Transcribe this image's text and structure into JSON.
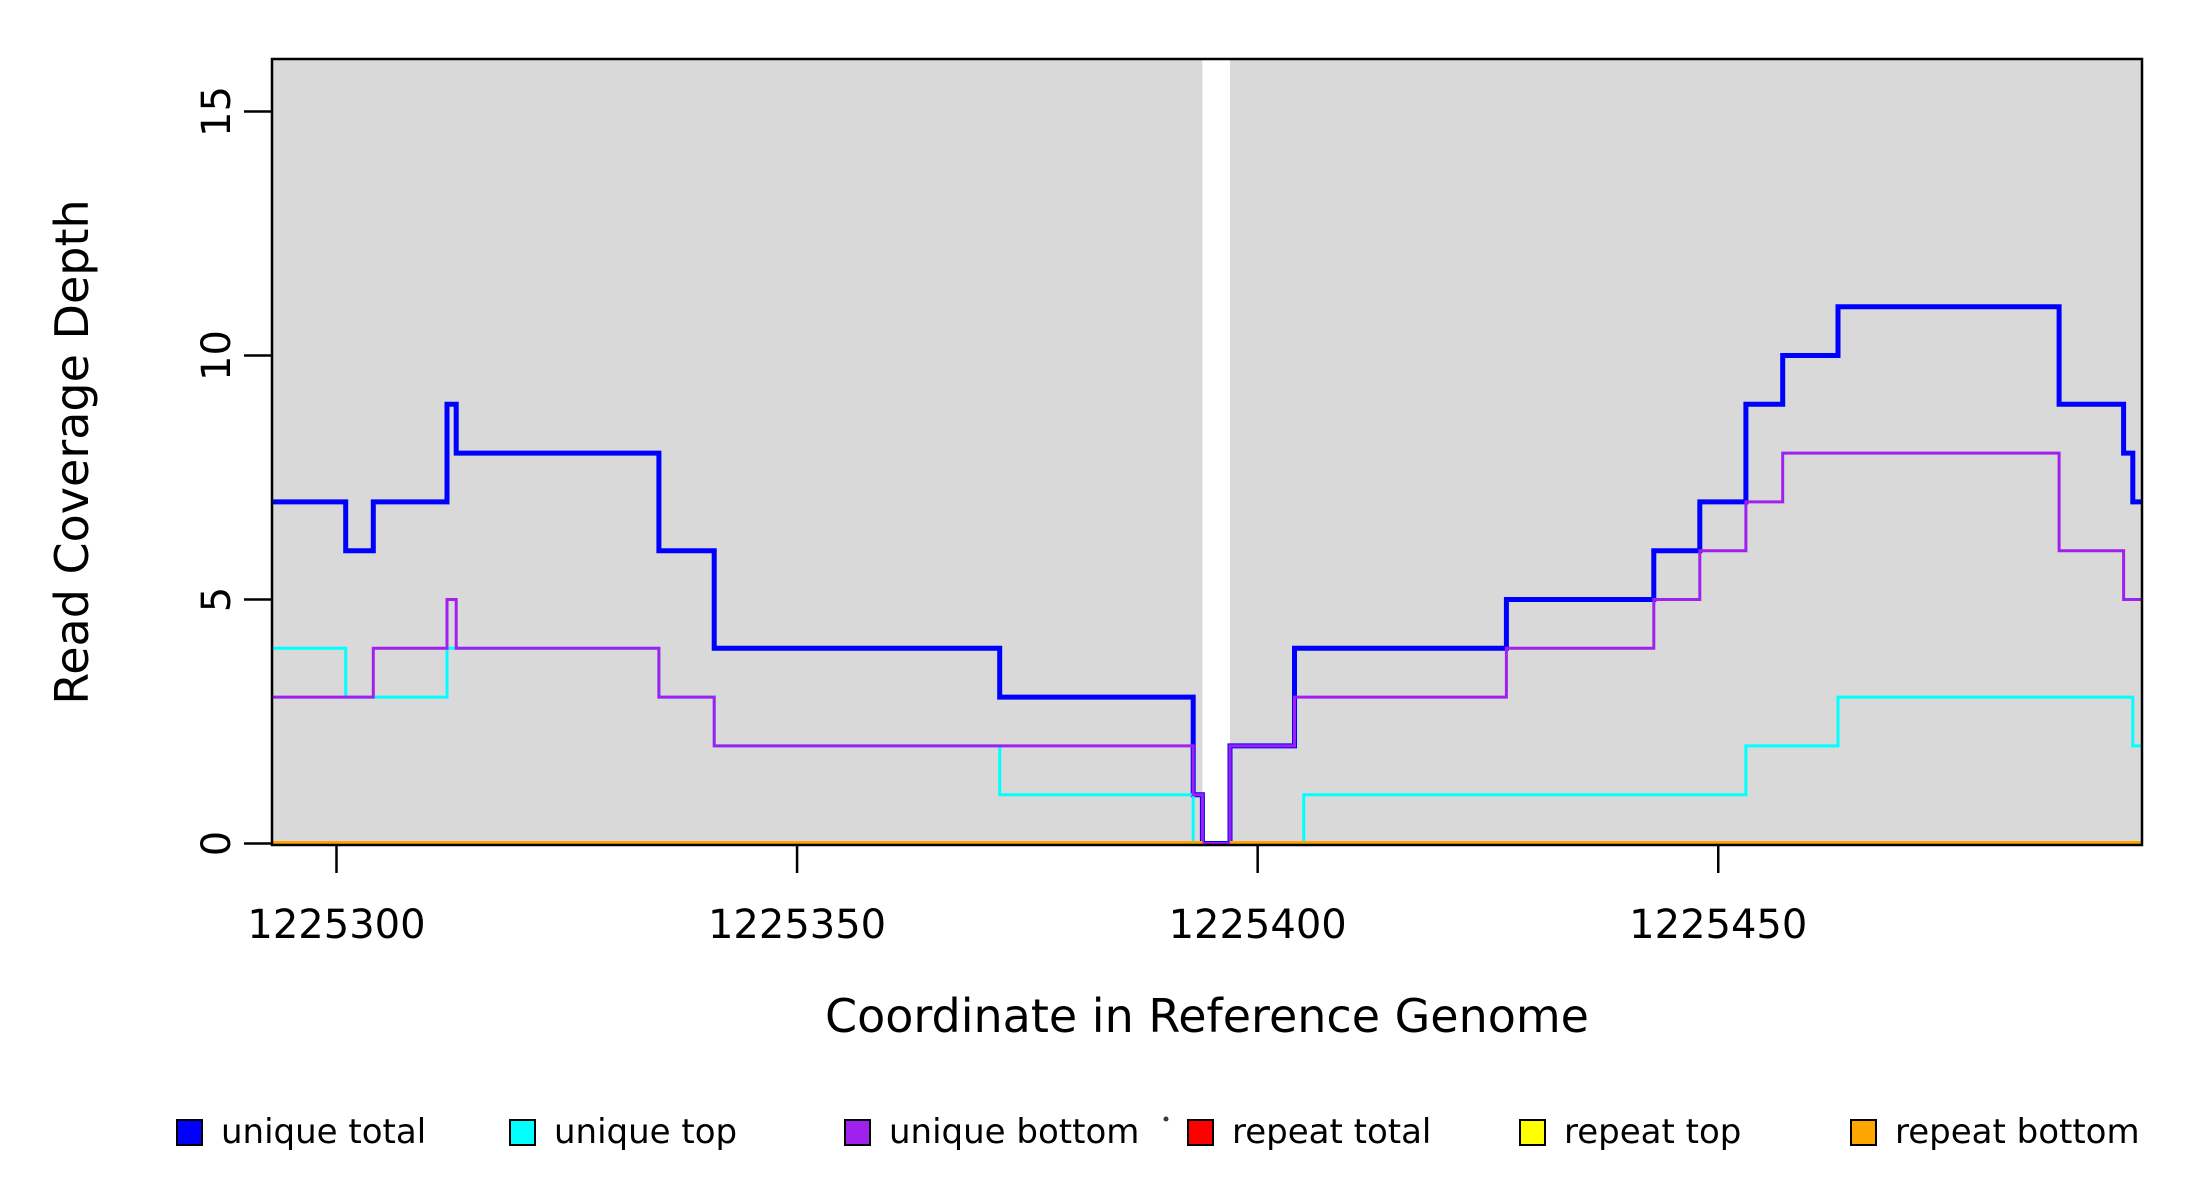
{
  "figure": {
    "background": "#ffffff",
    "plot_background": "#d9d9d9",
    "border_color": "#000000",
    "no_data_band_color": "#ffffff",
    "stray_dot_color": "#3a3a3a"
  },
  "chart_data": {
    "type": "line",
    "subtype": "step",
    "title": "",
    "xlabel": "Coordinate in Reference Genome",
    "ylabel": "Read Coverage Depth",
    "xlim": [
      1225293,
      1225496
    ],
    "ylim": [
      0,
      16
    ],
    "xticks": [
      1225300,
      1225350,
      1225400,
      1225450
    ],
    "yticks": [
      0,
      5,
      10,
      15
    ],
    "grid": false,
    "legend_position": "bottom",
    "no_data_gap": [
      1225394,
      1225397
    ],
    "series": [
      {
        "label": "unique total",
        "color": "#0000ff",
        "width": 5,
        "segments": [
          [
            [
              1225293,
              7
            ],
            [
              1225301,
              6
            ],
            [
              1225304,
              7
            ],
            [
              1225312,
              9
            ],
            [
              1225313,
              8
            ],
            [
              1225335,
              6
            ],
            [
              1225341,
              4
            ],
            [
              1225372,
              3
            ],
            [
              1225393,
              1
            ],
            [
              1225394,
              0
            ],
            [
              1225397,
              2
            ],
            [
              1225404,
              4
            ],
            [
              1225427,
              5
            ],
            [
              1225443,
              6
            ],
            [
              1225448,
              7
            ],
            [
              1225453,
              9
            ],
            [
              1225457,
              10
            ],
            [
              1225463,
              11
            ],
            [
              1225487,
              9
            ],
            [
              1225494,
              8
            ],
            [
              1225495,
              7
            ],
            [
              1225496,
              7
            ]
          ]
        ]
      },
      {
        "label": "unique top",
        "color": "#00ffff",
        "width": 3,
        "segments": [
          [
            [
              1225293,
              4
            ],
            [
              1225301,
              3
            ],
            [
              1225312,
              4
            ],
            [
              1225335,
              3
            ],
            [
              1225341,
              2
            ],
            [
              1225372,
              1
            ],
            [
              1225393,
              0
            ],
            [
              1225405,
              1
            ],
            [
              1225453,
              2
            ],
            [
              1225463,
              3
            ],
            [
              1225495,
              2
            ],
            [
              1225496,
              2
            ]
          ]
        ]
      },
      {
        "label": "unique bottom",
        "color": "#a020f0",
        "width": 3,
        "segments": [
          [
            [
              1225293,
              3
            ],
            [
              1225304,
              4
            ],
            [
              1225312,
              5
            ],
            [
              1225313,
              4
            ],
            [
              1225335,
              3
            ],
            [
              1225341,
              2
            ],
            [
              1225393,
              1
            ],
            [
              1225394,
              0
            ],
            [
              1225397,
              2
            ],
            [
              1225404,
              3
            ],
            [
              1225427,
              4
            ],
            [
              1225443,
              5
            ],
            [
              1225448,
              6
            ],
            [
              1225453,
              7
            ],
            [
              1225457,
              8
            ],
            [
              1225487,
              6
            ],
            [
              1225494,
              5
            ],
            [
              1225496,
              5
            ]
          ]
        ]
      },
      {
        "label": "repeat total",
        "color": "#ff0000",
        "width": 4,
        "segments": [
          [
            [
              1225293,
              0
            ],
            [
              1225394,
              0
            ]
          ],
          [
            [
              1225397,
              0
            ],
            [
              1225496,
              0
            ]
          ]
        ]
      },
      {
        "label": "repeat top",
        "color": "#ffff00",
        "width": 4,
        "segments": [
          [
            [
              1225293,
              0
            ],
            [
              1225394,
              0
            ]
          ],
          [
            [
              1225397,
              0
            ],
            [
              1225496,
              0
            ]
          ]
        ]
      },
      {
        "label": "repeat bottom",
        "color": "#ffa500",
        "width": 5,
        "segments": [
          [
            [
              1225293,
              0
            ],
            [
              1225394,
              0
            ]
          ],
          [
            [
              1225397,
              0
            ],
            [
              1225496,
              0
            ]
          ]
        ]
      }
    ]
  }
}
